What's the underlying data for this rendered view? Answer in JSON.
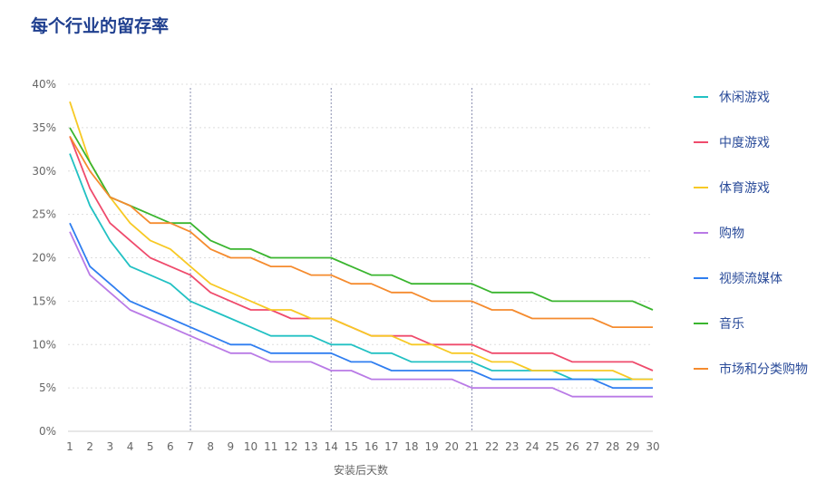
{
  "title": "每个行业的留存率",
  "chart_data": {
    "type": "line",
    "xlabel": "安装后天数",
    "ylabel": "",
    "x": [
      1,
      2,
      3,
      4,
      5,
      6,
      7,
      8,
      9,
      10,
      11,
      12,
      13,
      14,
      15,
      16,
      17,
      18,
      19,
      20,
      21,
      22,
      23,
      24,
      25,
      26,
      27,
      28,
      29,
      30
    ],
    "ylim": [
      0,
      40
    ],
    "y_ticks": [
      "0%",
      "5%",
      "10%",
      "15%",
      "20%",
      "25%",
      "30%",
      "35%",
      "40%"
    ],
    "y_tick_values": [
      0,
      5,
      10,
      15,
      20,
      25,
      30,
      35,
      40
    ],
    "vertical_markers": [
      7,
      14,
      21
    ],
    "grid": "horizontal dotted",
    "legend_position": "right",
    "series": [
      {
        "name": "休闲游戏",
        "color": "#22c1c3",
        "values": [
          32,
          26,
          22,
          19,
          18,
          17,
          15,
          14,
          13,
          12,
          11,
          11,
          11,
          10,
          10,
          9,
          9,
          8,
          8,
          8,
          8,
          7,
          7,
          7,
          7,
          6,
          6,
          6,
          6,
          6
        ]
      },
      {
        "name": "中度游戏",
        "color": "#ef4b6c",
        "values": [
          34,
          28,
          24,
          22,
          20,
          19,
          18,
          16,
          15,
          14,
          14,
          13,
          13,
          13,
          12,
          11,
          11,
          11,
          10,
          10,
          10,
          9,
          9,
          9,
          9,
          8,
          8,
          8,
          8,
          7
        ]
      },
      {
        "name": "体育游戏",
        "color": "#f7c925",
        "values": [
          38,
          31,
          27,
          24,
          22,
          21,
          19,
          17,
          16,
          15,
          14,
          14,
          13,
          13,
          12,
          11,
          11,
          10,
          10,
          9,
          9,
          8,
          8,
          7,
          7,
          7,
          7,
          7,
          6,
          6
        ]
      },
      {
        "name": "购物",
        "color": "#b97ae6",
        "values": [
          23,
          18,
          16,
          14,
          13,
          12,
          11,
          10,
          9,
          9,
          8,
          8,
          8,
          7,
          7,
          6,
          6,
          6,
          6,
          6,
          5,
          5,
          5,
          5,
          5,
          4,
          4,
          4,
          4,
          4
        ]
      },
      {
        "name": "视频流媒体",
        "color": "#2f7ef0",
        "values": [
          24,
          19,
          17,
          15,
          14,
          13,
          12,
          11,
          10,
          10,
          9,
          9,
          9,
          9,
          8,
          8,
          7,
          7,
          7,
          7,
          7,
          6,
          6,
          6,
          6,
          6,
          6,
          5,
          5,
          5
        ]
      },
      {
        "name": "音乐",
        "color": "#3ab52f",
        "values": [
          35,
          31,
          27,
          26,
          25,
          24,
          24,
          22,
          21,
          21,
          20,
          20,
          20,
          20,
          19,
          18,
          18,
          17,
          17,
          17,
          17,
          16,
          16,
          16,
          15,
          15,
          15,
          15,
          15,
          14
        ]
      },
      {
        "name": "市场和分类购物",
        "color": "#f58b2e",
        "values": [
          34,
          30,
          27,
          26,
          24,
          24,
          23,
          21,
          20,
          20,
          19,
          19,
          18,
          18,
          17,
          17,
          16,
          16,
          15,
          15,
          15,
          14,
          14,
          13,
          13,
          13,
          13,
          12,
          12,
          12
        ]
      }
    ]
  }
}
